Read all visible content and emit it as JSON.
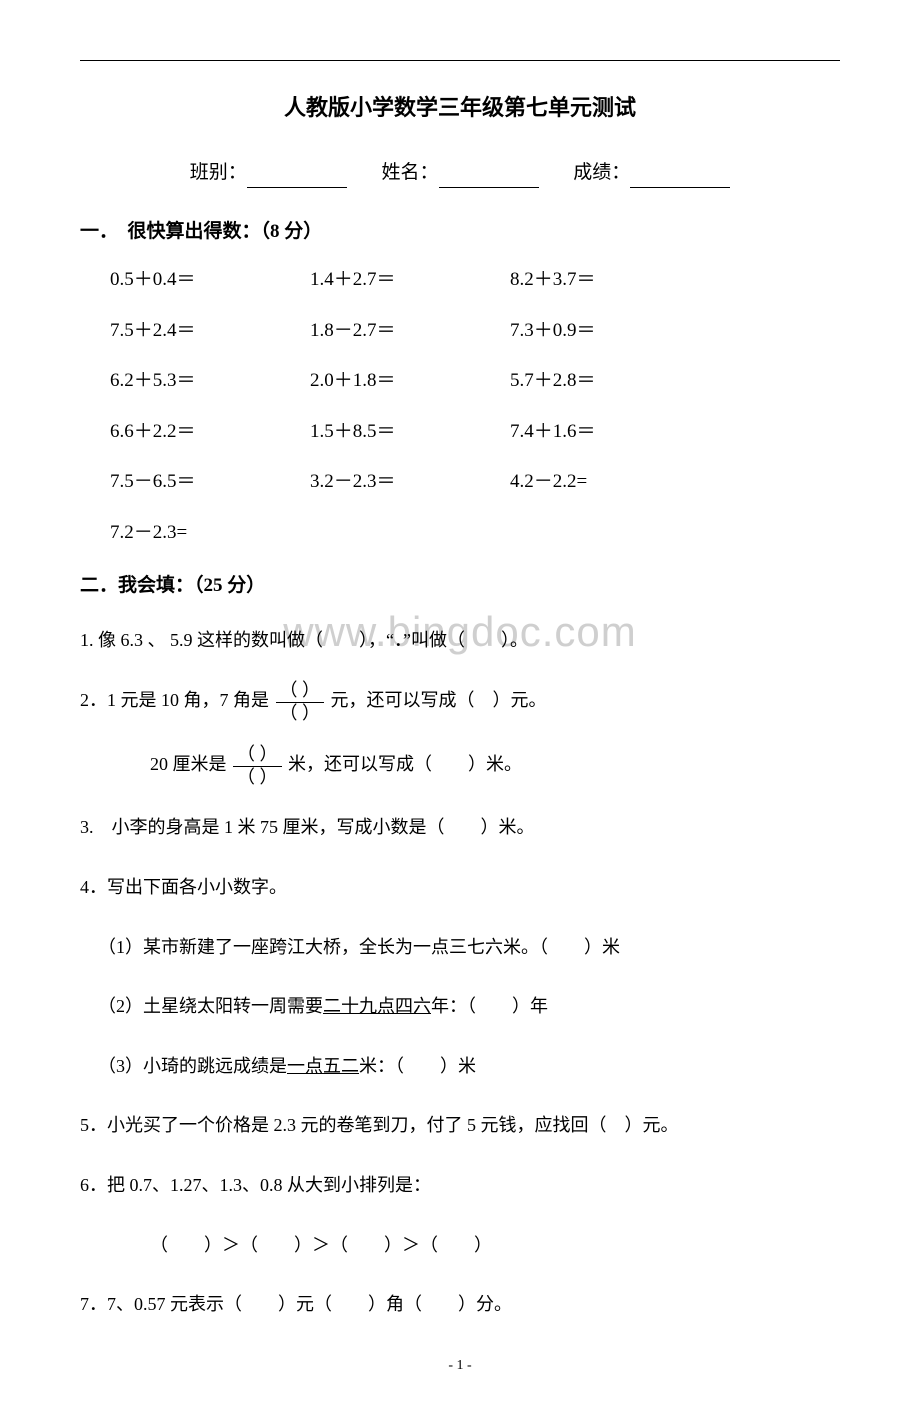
{
  "watermark": "www.bingdoc.com",
  "title": "人教版小学数学三年级第七单元测试",
  "info": {
    "class_label": "班别：",
    "name_label": "姓名：",
    "score_label": "成绩："
  },
  "section1": {
    "header": "一．　很快算出得数：（8 分）",
    "rows": [
      [
        "0.5＋0.4＝",
        "1.4＋2.7＝",
        "8.2＋3.7＝"
      ],
      [
        "7.5＋2.4＝",
        "1.8－2.7＝",
        "7.3＋0.9＝"
      ],
      [
        "6.2＋5.3＝",
        "2.0＋1.8＝",
        "5.7＋2.8＝"
      ],
      [
        "6.6＋2.2＝",
        "1.5＋8.5＝",
        "7.4＋1.6＝"
      ],
      [
        "7.5－6.5＝",
        "3.2－2.3＝",
        "4.2－2.2="
      ],
      [
        "7.2－2.3=",
        "",
        ""
      ]
    ]
  },
  "section2": {
    "header": "二．我会填：（25 分）",
    "q1": "1. 像 6.3 、 5.9 这样的数叫做（　　），“．”叫做（　　）。",
    "q2_a": "2．1 元是 10 角，7 角是",
    "q2_b": "元，还可以写成（　）元。",
    "q2c_a": "20 厘米是",
    "q2c_b": "米，还可以写成（　　）米。",
    "frac_paren_num": "（ ）",
    "frac_paren_den": "（ ）",
    "q3": "3.　小李的身高是 1 米 75 厘米，写成小数是（　　）米。",
    "q4": "4．写出下面各小小数字。",
    "q4_1": "（1）某市新建了一座跨江大桥，全长为一点三七六米。（　　）米",
    "q4_2a": "（2）土星绕太阳转一周需要",
    "q4_2u": "二十九点四六",
    "q4_2b": "年：（　　）年",
    "q4_3a": "（3）小琦的跳远成绩是",
    "q4_3u": "一点五二",
    "q4_3b": "米：（　　）米",
    "q5": "5．小光买了一个价格是 2.3 元的卷笔到刀，付了 5 元钱，应找回（　）元。",
    "q6": "6．把 0.7、1.27、1.3、0.8 从大到小排列是：",
    "q6_line": "（　　）＞（　　）＞（　　）＞（　　）",
    "q7": "7．7、0.57 元表示（　　）元（　　）角（　　）分。"
  },
  "page_number": "- 1 -",
  "colors": {
    "text": "#000000",
    "background": "#ffffff",
    "watermark": "rgba(160,160,160,0.5)"
  },
  "typography": {
    "title_fontsize": 22,
    "body_fontsize": 18,
    "font_family": "SimSun"
  }
}
